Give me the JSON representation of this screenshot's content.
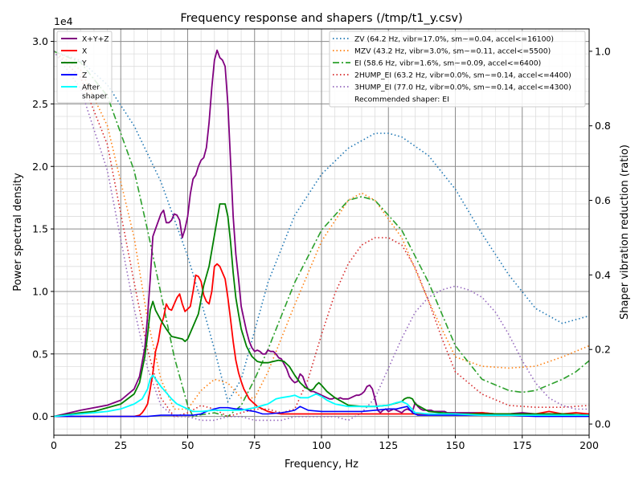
{
  "chart_data": {
    "type": "line",
    "title": "Frequency response and shapers (/tmp/t1_y.csv)",
    "xlabel": "Frequency, Hz",
    "ylabel": "Power spectral density",
    "y2label": "Shaper vibration reduction (ratio)",
    "yexponent": "1e4",
    "xlim": [
      0,
      200
    ],
    "ylim": [
      -0.15,
      3.1
    ],
    "y2lim": [
      -0.03,
      1.06
    ],
    "xticks": [
      0,
      25,
      50,
      75,
      100,
      125,
      150,
      175,
      200
    ],
    "xtick_labels": [
      "0",
      "25",
      "50",
      "75",
      "100",
      "125",
      "150",
      "175",
      "200"
    ],
    "yticks": [
      0,
      0.5,
      1.0,
      1.5,
      2.0,
      2.5,
      3.0
    ],
    "ytick_labels": [
      "0.0",
      "0.5",
      "1.0",
      "1.5",
      "2.0",
      "2.5",
      "3.0"
    ],
    "y2ticks": [
      0,
      0.2,
      0.4,
      0.6,
      0.8,
      1.0
    ],
    "y2tick_labels": [
      "0.0",
      "0.2",
      "0.4",
      "0.6",
      "0.8",
      "1.0"
    ],
    "grid": true,
    "minor_grid": true,
    "legend_left_placement": "top-left",
    "legend_right_placement": "top-right",
    "psd_series": [
      {
        "name": "X+Y+Z",
        "color": "#800080",
        "width": 1.8,
        "x": [
          0,
          10,
          20,
          25,
          30,
          32,
          34,
          35,
          36,
          37,
          38,
          40,
          41,
          42,
          43,
          44,
          45,
          46,
          47,
          48,
          49,
          50,
          51,
          52,
          53,
          54,
          55,
          56,
          57,
          58,
          59,
          60,
          61,
          62,
          63,
          64,
          65,
          66,
          67,
          68,
          69,
          70,
          71,
          72,
          73,
          74,
          75,
          76,
          77,
          78,
          79,
          80,
          81,
          82,
          83,
          84,
          85,
          86,
          87,
          88,
          89,
          90,
          91,
          92,
          93,
          94,
          95,
          96,
          97,
          98,
          99,
          100,
          101,
          102,
          103,
          104,
          105,
          106,
          107,
          108,
          109,
          110,
          111,
          112,
          113,
          114,
          115,
          116,
          117,
          118,
          119,
          120,
          121,
          122,
          123,
          124,
          125,
          126,
          127,
          128,
          129,
          130,
          131,
          132,
          133,
          134,
          135,
          136,
          137,
          138,
          139,
          140,
          141,
          142,
          143,
          144,
          145,
          146,
          147,
          148,
          149,
          150,
          152,
          155,
          160,
          165,
          170,
          175,
          180,
          185,
          190,
          195,
          200
        ],
        "y": [
          0,
          0.05,
          0.09,
          0.13,
          0.22,
          0.32,
          0.55,
          0.8,
          1.1,
          1.44,
          1.5,
          1.62,
          1.65,
          1.55,
          1.55,
          1.57,
          1.62,
          1.61,
          1.57,
          1.43,
          1.5,
          1.6,
          1.78,
          1.9,
          1.93,
          2.0,
          2.05,
          2.07,
          2.15,
          2.35,
          2.63,
          2.85,
          2.93,
          2.87,
          2.85,
          2.8,
          2.5,
          2.05,
          1.6,
          1.3,
          1.1,
          0.88,
          0.78,
          0.68,
          0.6,
          0.55,
          0.52,
          0.53,
          0.52,
          0.5,
          0.5,
          0.53,
          0.52,
          0.52,
          0.5,
          0.47,
          0.46,
          0.42,
          0.38,
          0.32,
          0.29,
          0.27,
          0.28,
          0.34,
          0.32,
          0.26,
          0.22,
          0.2,
          0.2,
          0.19,
          0.18,
          0.17,
          0.16,
          0.15,
          0.14,
          0.14,
          0.15,
          0.14,
          0.15,
          0.14,
          0.14,
          0.14,
          0.15,
          0.16,
          0.17,
          0.17,
          0.18,
          0.2,
          0.24,
          0.25,
          0.22,
          0.14,
          0.05,
          0.03,
          0.05,
          0.06,
          0.04,
          0.05,
          0.06,
          0.05,
          0.04,
          0.03,
          0.05,
          0.06,
          0.05,
          0.04,
          0.11,
          0.08,
          0.06,
          0.05,
          0.05,
          0.05,
          0.05,
          0.04,
          0.04,
          0.04,
          0.04,
          0.04,
          0.03,
          0.03,
          0.03,
          0.03,
          0.03,
          0.03,
          0.03,
          0.02,
          0.02,
          0.03,
          0.02,
          0.02,
          0.01,
          0.01,
          0.02
        ]
      },
      {
        "name": "X",
        "color": "#ff0000",
        "width": 1.8,
        "x": [
          0,
          10,
          20,
          30,
          32,
          33,
          34,
          35,
          36,
          37,
          38,
          39,
          40,
          41,
          42,
          43,
          44,
          45,
          46,
          47,
          48,
          49,
          50,
          51,
          52,
          53,
          54,
          55,
          56,
          57,
          58,
          59,
          60,
          61,
          62,
          63,
          64,
          65,
          66,
          67,
          68,
          69,
          70,
          71,
          72,
          73,
          74,
          75,
          76,
          77,
          78,
          79,
          80,
          82,
          85,
          90,
          95,
          100,
          105,
          110,
          115,
          120,
          125,
          130,
          135,
          140,
          145,
          150,
          155,
          160,
          165,
          170,
          175,
          180,
          185,
          190,
          195,
          200
        ],
        "y": [
          0,
          0,
          0,
          0,
          0.01,
          0.03,
          0.06,
          0.1,
          0.22,
          0.35,
          0.52,
          0.6,
          0.73,
          0.79,
          0.9,
          0.86,
          0.85,
          0.9,
          0.95,
          0.98,
          0.9,
          0.84,
          0.86,
          0.88,
          1.0,
          1.13,
          1.12,
          1.08,
          0.97,
          0.92,
          0.9,
          1.0,
          1.2,
          1.22,
          1.2,
          1.15,
          1.1,
          0.95,
          0.78,
          0.6,
          0.45,
          0.35,
          0.28,
          0.22,
          0.18,
          0.14,
          0.12,
          0.1,
          0.08,
          0.07,
          0.06,
          0.05,
          0.04,
          0.03,
          0.02,
          0.02,
          0.02,
          0.02,
          0.02,
          0.02,
          0.02,
          0.02,
          0.02,
          0.02,
          0.02,
          0.02,
          0.02,
          0.02,
          0.02,
          0.03,
          0.02,
          0.02,
          0.02,
          0.02,
          0.04,
          0.02,
          0.03,
          0.02
        ]
      },
      {
        "name": "Y",
        "color": "#008000",
        "width": 1.8,
        "x": [
          0,
          10,
          15,
          20,
          25,
          30,
          32,
          34,
          35,
          36,
          37,
          38,
          40,
          42,
          44,
          46,
          48,
          49,
          50,
          52,
          54,
          56,
          58,
          60,
          62,
          64,
          65,
          66,
          67,
          68,
          69,
          70,
          72,
          74,
          76,
          78,
          80,
          82,
          84,
          86,
          88,
          90,
          92,
          94,
          95,
          96,
          97,
          98,
          99,
          100,
          102,
          105,
          110,
          115,
          120,
          125,
          130,
          131,
          132,
          133,
          134,
          135,
          140,
          145,
          150,
          160,
          170,
          180,
          190,
          200
        ],
        "y": [
          0,
          0.03,
          0.04,
          0.07,
          0.1,
          0.18,
          0.27,
          0.48,
          0.65,
          0.85,
          0.92,
          0.85,
          0.77,
          0.7,
          0.64,
          0.63,
          0.62,
          0.6,
          0.62,
          0.72,
          0.82,
          1.05,
          1.2,
          1.45,
          1.7,
          1.7,
          1.6,
          1.4,
          1.15,
          0.95,
          0.82,
          0.7,
          0.56,
          0.48,
          0.44,
          0.43,
          0.43,
          0.44,
          0.45,
          0.44,
          0.4,
          0.33,
          0.27,
          0.23,
          0.22,
          0.21,
          0.22,
          0.25,
          0.27,
          0.25,
          0.2,
          0.15,
          0.09,
          0.08,
          0.08,
          0.09,
          0.12,
          0.14,
          0.15,
          0.15,
          0.14,
          0.1,
          0.04,
          0.03,
          0.02,
          0.02,
          0.02,
          0.02,
          0.02,
          0.01
        ]
      },
      {
        "name": "Z",
        "color": "#0000ff",
        "width": 1.6,
        "x": [
          0,
          10,
          20,
          30,
          35,
          40,
          45,
          50,
          52,
          55,
          57,
          60,
          62,
          65,
          68,
          70,
          72,
          75,
          78,
          80,
          85,
          88,
          90,
          92,
          95,
          100,
          105,
          110,
          115,
          120,
          125,
          128,
          130,
          132,
          134,
          136,
          140,
          145,
          150,
          160,
          170,
          180,
          190,
          200
        ],
        "y": [
          0,
          0,
          0,
          0,
          0,
          0.01,
          0.01,
          0.01,
          0.01,
          0.02,
          0.04,
          0.06,
          0.07,
          0.07,
          0.06,
          0.06,
          0.05,
          0.04,
          0.02,
          0.02,
          0.03,
          0.04,
          0.05,
          0.08,
          0.05,
          0.04,
          0.04,
          0.04,
          0.04,
          0.05,
          0.06,
          0.06,
          0.07,
          0.08,
          0.03,
          0.01,
          0.01,
          0.01,
          0.01,
          0.01,
          0.01,
          0.0,
          0.0,
          0.0
        ]
      },
      {
        "name": "After\nshaper",
        "color": "#00ffff",
        "width": 1.8,
        "x": [
          0,
          10,
          20,
          25,
          30,
          33,
          35,
          36,
          37,
          38,
          39,
          40,
          42,
          44,
          46,
          48,
          50,
          52,
          55,
          60,
          65,
          70,
          75,
          80,
          83,
          85,
          88,
          90,
          92,
          95,
          97,
          98,
          99,
          100,
          102,
          105,
          110,
          115,
          120,
          125,
          128,
          130,
          132,
          135,
          140,
          145,
          150,
          160,
          170,
          180,
          190,
          200
        ],
        "y": [
          0,
          0.02,
          0.04,
          0.06,
          0.1,
          0.14,
          0.22,
          0.3,
          0.33,
          0.3,
          0.27,
          0.24,
          0.19,
          0.14,
          0.1,
          0.08,
          0.06,
          0.04,
          0.04,
          0.05,
          0.05,
          0.05,
          0.07,
          0.1,
          0.14,
          0.15,
          0.16,
          0.17,
          0.15,
          0.15,
          0.17,
          0.18,
          0.17,
          0.16,
          0.13,
          0.1,
          0.08,
          0.08,
          0.08,
          0.09,
          0.11,
          0.12,
          0.1,
          0.03,
          0.02,
          0.02,
          0.02,
          0.01,
          0.01,
          0.01,
          0.01,
          0.01
        ]
      }
    ],
    "shaper_series": [
      {
        "name": "ZV (64.2 Hz, vibr=17.0%, sm~=0.04, accel<=16100)",
        "color": "#1f77b4",
        "dash": "1.5,3",
        "x": [
          0,
          10,
          20,
          30,
          40,
          50,
          55,
          60,
          65,
          70,
          75,
          80,
          90,
          100,
          110,
          120,
          125,
          130,
          140,
          150,
          160,
          170,
          180,
          190,
          200
        ],
        "y": [
          1.0,
          0.975,
          0.91,
          0.8,
          0.65,
          0.45,
          0.33,
          0.2,
          0.06,
          0.12,
          0.25,
          0.38,
          0.56,
          0.67,
          0.74,
          0.78,
          0.78,
          0.77,
          0.72,
          0.63,
          0.51,
          0.4,
          0.31,
          0.27,
          0.29
        ]
      },
      {
        "name": "MZV (43.2 Hz, vibr=3.0%, sm~=0.11, accel<=5500)",
        "color": "#ff7f0e",
        "dash": "1.5,3",
        "x": [
          0,
          10,
          20,
          30,
          35,
          40,
          45,
          50,
          55,
          60,
          65,
          70,
          75,
          80,
          90,
          100,
          110,
          115,
          120,
          130,
          140,
          150,
          160,
          170,
          180,
          190,
          200
        ],
        "y": [
          1.0,
          0.95,
          0.8,
          0.5,
          0.28,
          0.12,
          0.04,
          0.04,
          0.09,
          0.12,
          0.11,
          0.07,
          0.07,
          0.14,
          0.32,
          0.49,
          0.6,
          0.62,
          0.6,
          0.5,
          0.33,
          0.18,
          0.155,
          0.15,
          0.155,
          0.18,
          0.21
        ]
      },
      {
        "name": "EI (58.6 Hz, vibr=1.6%, sm~=0.09, accel<=6400)",
        "color": "#2ca02c",
        "dash": "8,3,2,3",
        "x": [
          0,
          10,
          20,
          30,
          35,
          40,
          45,
          50,
          52,
          55,
          60,
          65,
          70,
          75,
          80,
          90,
          100,
          110,
          115,
          120,
          130,
          140,
          150,
          160,
          170,
          175,
          180,
          190,
          195,
          200
        ],
        "y": [
          1.0,
          0.97,
          0.88,
          0.68,
          0.52,
          0.35,
          0.18,
          0.05,
          0.02,
          0.025,
          0.03,
          0.02,
          0.05,
          0.12,
          0.2,
          0.38,
          0.52,
          0.6,
          0.61,
          0.6,
          0.52,
          0.38,
          0.21,
          0.12,
          0.09,
          0.085,
          0.09,
          0.12,
          0.14,
          0.17
        ]
      },
      {
        "name": "2HUMP_EI (63.2 Hz, vibr=0.0%, sm~=0.14, accel<=4400)",
        "color": "#d62728",
        "dash": "1.5,3",
        "x": [
          0,
          10,
          20,
          30,
          35,
          40,
          45,
          50,
          55,
          60,
          65,
          70,
          75,
          80,
          85,
          90,
          95,
          100,
          105,
          110,
          115,
          120,
          125,
          130,
          135,
          140,
          145,
          150,
          160,
          170,
          180,
          190,
          200
        ],
        "y": [
          1.0,
          0.93,
          0.75,
          0.38,
          0.2,
          0.07,
          0.02,
          0.03,
          0.05,
          0.04,
          0.02,
          0.03,
          0.04,
          0.04,
          0.03,
          0.04,
          0.12,
          0.24,
          0.35,
          0.43,
          0.48,
          0.5,
          0.5,
          0.48,
          0.42,
          0.33,
          0.23,
          0.14,
          0.08,
          0.05,
          0.045,
          0.045,
          0.05
        ]
      },
      {
        "name": "3HUMP_EI (77.0 Hz, vibr=0.0%, sm~=0.14, accel<=4300)",
        "color": "#9467bd",
        "dash": "1.5,3",
        "x": [
          0,
          10,
          20,
          30,
          35,
          40,
          45,
          50,
          55,
          60,
          65,
          70,
          75,
          80,
          85,
          90,
          95,
          100,
          105,
          110,
          115,
          120,
          125,
          130,
          135,
          140,
          145,
          150,
          155,
          160,
          165,
          170,
          175,
          180,
          185,
          190,
          195,
          200
        ],
        "y": [
          1.0,
          0.9,
          0.68,
          0.31,
          0.15,
          0.05,
          0.02,
          0.02,
          0.01,
          0.01,
          0.02,
          0.02,
          0.01,
          0.01,
          0.01,
          0.02,
          0.02,
          0.02,
          0.02,
          0.01,
          0.03,
          0.07,
          0.15,
          0.23,
          0.3,
          0.34,
          0.36,
          0.37,
          0.36,
          0.34,
          0.3,
          0.24,
          0.17,
          0.11,
          0.07,
          0.05,
          0.04,
          0.04
        ]
      }
    ],
    "recommended_label": "Recommended shaper: EI"
  }
}
